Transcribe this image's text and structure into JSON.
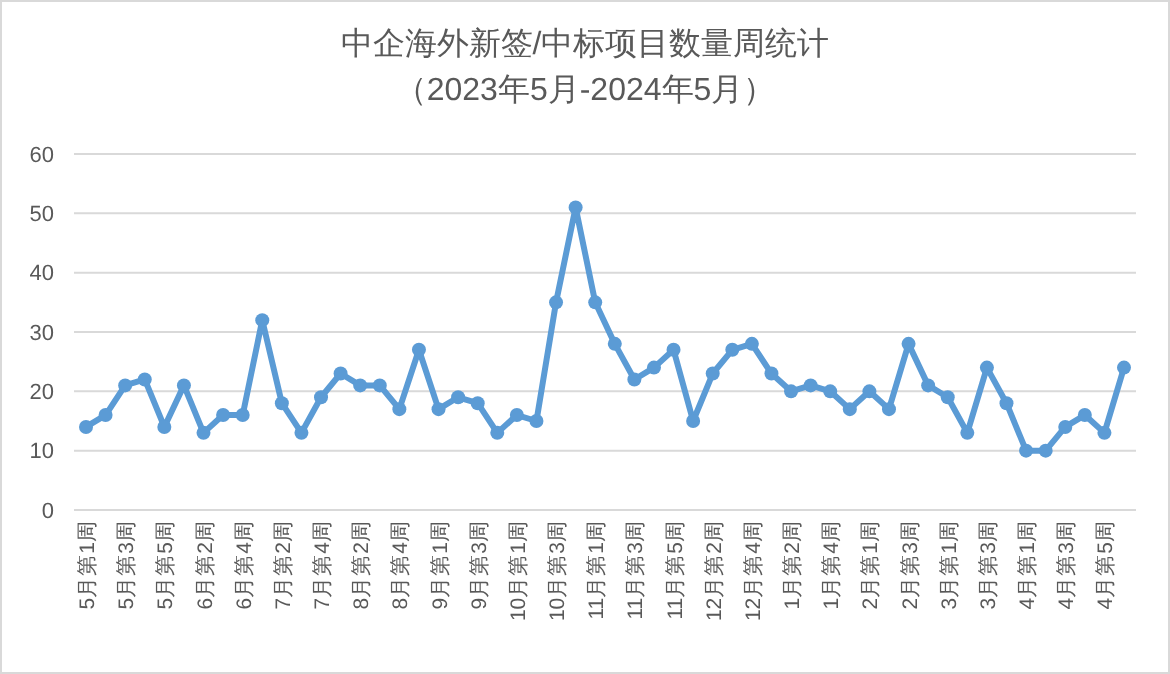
{
  "chart_data": {
    "type": "line",
    "title": "中企海外新签/中标项目数量周统计",
    "subtitle": "（2023年5月-2024年5月）",
    "categories": [
      "5月第1周",
      null,
      "5月第3周",
      null,
      "5月第5周",
      null,
      "6月第2周",
      null,
      "6月第4周",
      null,
      "7月第2周",
      null,
      "7月第4周",
      null,
      "8月第2周",
      null,
      "8月第4周",
      null,
      "9月第1周",
      null,
      "9月第3周",
      null,
      "10月第1周",
      null,
      "10月第3周",
      null,
      "11月第1周",
      null,
      "11月第3周",
      null,
      "11月第5周",
      null,
      "12月第2周",
      null,
      "12月第4周",
      null,
      "1月第2周",
      null,
      "1月第4周",
      null,
      "2月第1周",
      null,
      "2月第3周",
      null,
      "3月第1周",
      null,
      "3月第3周",
      null,
      "4月第1周",
      null,
      "4月第3周",
      null,
      "4月第5周",
      null
    ],
    "series": [
      {
        "color": "#5b9bd5",
        "values": [
          14,
          16,
          21,
          22,
          14,
          21,
          13,
          16,
          16,
          32,
          18,
          13,
          19,
          23,
          21,
          21,
          17,
          27,
          17,
          19,
          18,
          13,
          16,
          15,
          35,
          51,
          35,
          28,
          22,
          24,
          27,
          15,
          23,
          27,
          28,
          23,
          20,
          21,
          20,
          17,
          20,
          17,
          28,
          21,
          19,
          13,
          24,
          18,
          10,
          10,
          14,
          16,
          13,
          24
        ]
      }
    ],
    "ylim": [
      0,
      60
    ],
    "yticks": [
      0,
      10,
      20,
      30,
      40,
      50,
      60
    ],
    "grid": "y",
    "marker": "circle",
    "line_style": "solid"
  }
}
